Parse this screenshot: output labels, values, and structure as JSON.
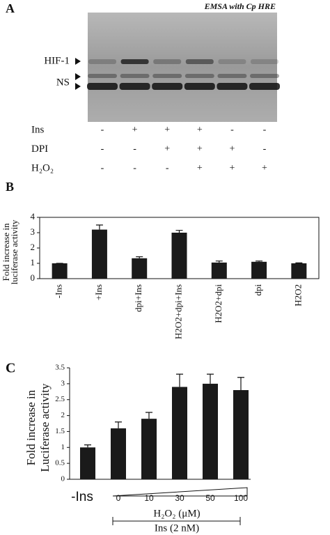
{
  "panel_a": {
    "panel_label": "A",
    "title": "EMSA with Cp HRE",
    "band_labels": [
      "HIF-1",
      "NS"
    ],
    "rows": [
      {
        "label": "Ins",
        "signs": [
          "-",
          "+",
          "+",
          "+",
          "-",
          "-"
        ]
      },
      {
        "label": "DPI",
        "signs": [
          "-",
          "-",
          "+",
          "+",
          "+",
          "-"
        ]
      },
      {
        "label": "H₂O₂",
        "signs": [
          "-",
          "-",
          "-",
          "+",
          "+",
          "+"
        ]
      }
    ]
  },
  "chart_data": [
    {
      "type": "bar",
      "panel_label": "B",
      "ylabel": [
        "Fold increase in",
        "luciferase activity"
      ],
      "categories": [
        "-Ins",
        "+Ins",
        "dpi+Ins",
        "H2O2+dpi+Ins",
        "H2O2+dpi",
        "dpi",
        "H2O2"
      ],
      "values": [
        1,
        3.2,
        1.33,
        3.0,
        1.05,
        1.1,
        1.0
      ],
      "errors": [
        0,
        0.3,
        0.1,
        0.15,
        0.1,
        0.05,
        0.03
      ],
      "color": "#1a1a1a",
      "ylim": [
        0,
        4
      ],
      "yticks": [
        0,
        1,
        2,
        3,
        4
      ]
    },
    {
      "type": "bar",
      "panel_label": "C",
      "ylabel": [
        "Fold increase in",
        "Luciferase activity"
      ],
      "categories": [
        "-Ins",
        "0",
        "10",
        "30",
        "50",
        "100"
      ],
      "values": [
        1,
        1.6,
        1.9,
        2.9,
        3.0,
        2.8
      ],
      "errors": [
        0.08,
        0.2,
        0.2,
        0.4,
        0.3,
        0.4
      ],
      "color": "#1a1a1a",
      "ylim": [
        0,
        3.5
      ],
      "yticks": [
        0,
        0.5,
        1,
        1.5,
        2,
        2.5,
        3,
        3.5
      ],
      "xlabel": [
        "H₂O₂ (μM)",
        "Ins (2 nM)"
      ]
    }
  ]
}
